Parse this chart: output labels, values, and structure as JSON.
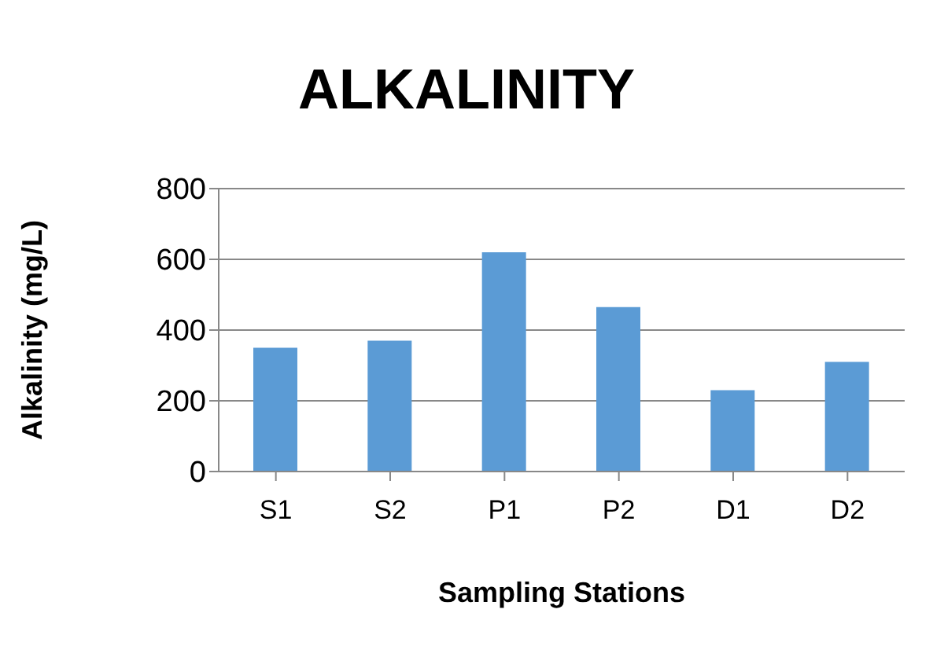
{
  "chart_data": {
    "type": "bar",
    "title": "ALKALINITY",
    "xlabel": "Sampling Stations",
    "ylabel": "Alkalinity (mg/L)",
    "categories": [
      "S1",
      "S2",
      "P1",
      "P2",
      "D1",
      "D2"
    ],
    "values": [
      350,
      370,
      620,
      465,
      230,
      310
    ],
    "color": "#5b9bd5",
    "ylim": [
      0,
      800
    ],
    "yticks": [
      0,
      200,
      400,
      600,
      800
    ],
    "grid": "y"
  }
}
